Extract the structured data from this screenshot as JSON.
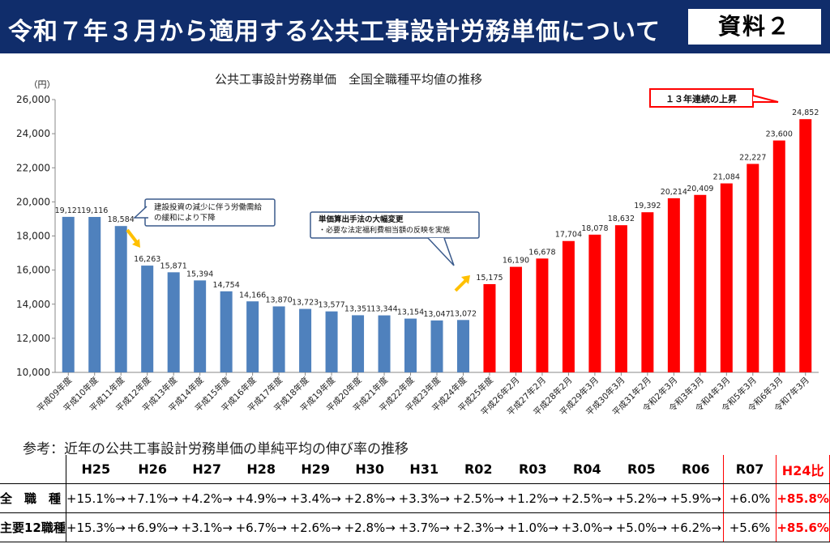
{
  "header": {
    "title": "令和７年３月から適用する公共工事設計労務単価について",
    "badge": "資料２",
    "bg_color": "#102d6b"
  },
  "chart_data": {
    "type": "bar",
    "title": "公共工事設計労務単価　全国全職種平均値の推移",
    "ylabel": "（円）",
    "xlabel": "",
    "ylim": [
      10000,
      26000
    ],
    "yticks": [
      10000,
      12000,
      14000,
      16000,
      18000,
      20000,
      22000,
      24000,
      26000
    ],
    "ytick_labels": [
      "10,000",
      "12,000",
      "14,000",
      "16,000",
      "18,000",
      "20,000",
      "22,000",
      "24,000",
      "26,000"
    ],
    "categories": [
      "平成09年度",
      "平成10年度",
      "平成11年度",
      "平成12年度",
      "平成13年度",
      "平成14年度",
      "平成15年度",
      "平成16年度",
      "平成17年度",
      "平成18年度",
      "平成19年度",
      "平成20年度",
      "平成21年度",
      "平成22年度",
      "平成23年度",
      "平成24年度",
      "平成25年度",
      "平成26年2月",
      "平成27年2月",
      "平成28年2月",
      "平成29年3月",
      "平成30年3月",
      "平成31年2月",
      "令和2年3月",
      "令和3年3月",
      "令和4年3月",
      "令和5年3月",
      "令和6年3月",
      "令和7年3月"
    ],
    "values": [
      19121,
      19116,
      18584,
      16263,
      15871,
      15394,
      14754,
      14166,
      13870,
      13723,
      13577,
      13351,
      13344,
      13154,
      13047,
      13072,
      15175,
      16190,
      16678,
      17704,
      18078,
      18632,
      19392,
      20214,
      20409,
      21084,
      22227,
      23600,
      24852
    ],
    "value_labels": [
      "19,121",
      "19,116",
      "18,584",
      "16,263",
      "15,871",
      "15,394",
      "14,754",
      "14,166",
      "13,870",
      "13,723",
      "13,577",
      "13,351",
      "13,344",
      "13,154",
      "13,047",
      "13,072",
      "15,175",
      "16,190",
      "16,678",
      "17,704",
      "18,078",
      "18,632",
      "19,392",
      "20,214",
      "20,409",
      "21,084",
      "22,227",
      "23,600",
      "24,852"
    ],
    "colors": {
      "before": "#4f81bd",
      "after": "#ff0000",
      "arrow": "#ffc000"
    },
    "red_from_index": 16,
    "grid": false,
    "annotations": [
      {
        "line1": "建設投資の減少に伴う労働需給",
        "line2": "の緩和により下降"
      },
      {
        "line1": "単価算出手法の大幅変更",
        "line2": "・必要な法定福利費相当額の反映を実施"
      },
      {
        "line1": "１３年連続の上昇"
      }
    ]
  },
  "reference": {
    "title": "参考：近年の公共工事設計労務単価の単純平均の伸び率の推移",
    "headers": [
      "H25",
      "H26",
      "H27",
      "H28",
      "H29",
      "H30",
      "H31",
      "R02",
      "R03",
      "R04",
      "R05",
      "R06",
      "R07",
      "H24比"
    ],
    "rows": [
      {
        "label": "全　職　種",
        "values": [
          "+15.1%",
          "+7.1%",
          "+4.2%",
          "+4.9%",
          "+3.4%",
          "+2.8%",
          "+3.3%",
          "+2.5%",
          "+1.2%",
          "+2.5%",
          "+5.2%",
          "+5.9%",
          "+6.0%",
          "+85.8%"
        ]
      },
      {
        "label": "主要12職種",
        "values": [
          "+15.3%",
          "+6.9%",
          "+3.1%",
          "+6.7%",
          "+2.6%",
          "+2.8%",
          "+3.7%",
          "+2.3%",
          "+1.0%",
          "+3.0%",
          "+5.0%",
          "+6.2%",
          "+5.6%",
          "+85.6%"
        ]
      }
    ],
    "arrow": "→"
  }
}
